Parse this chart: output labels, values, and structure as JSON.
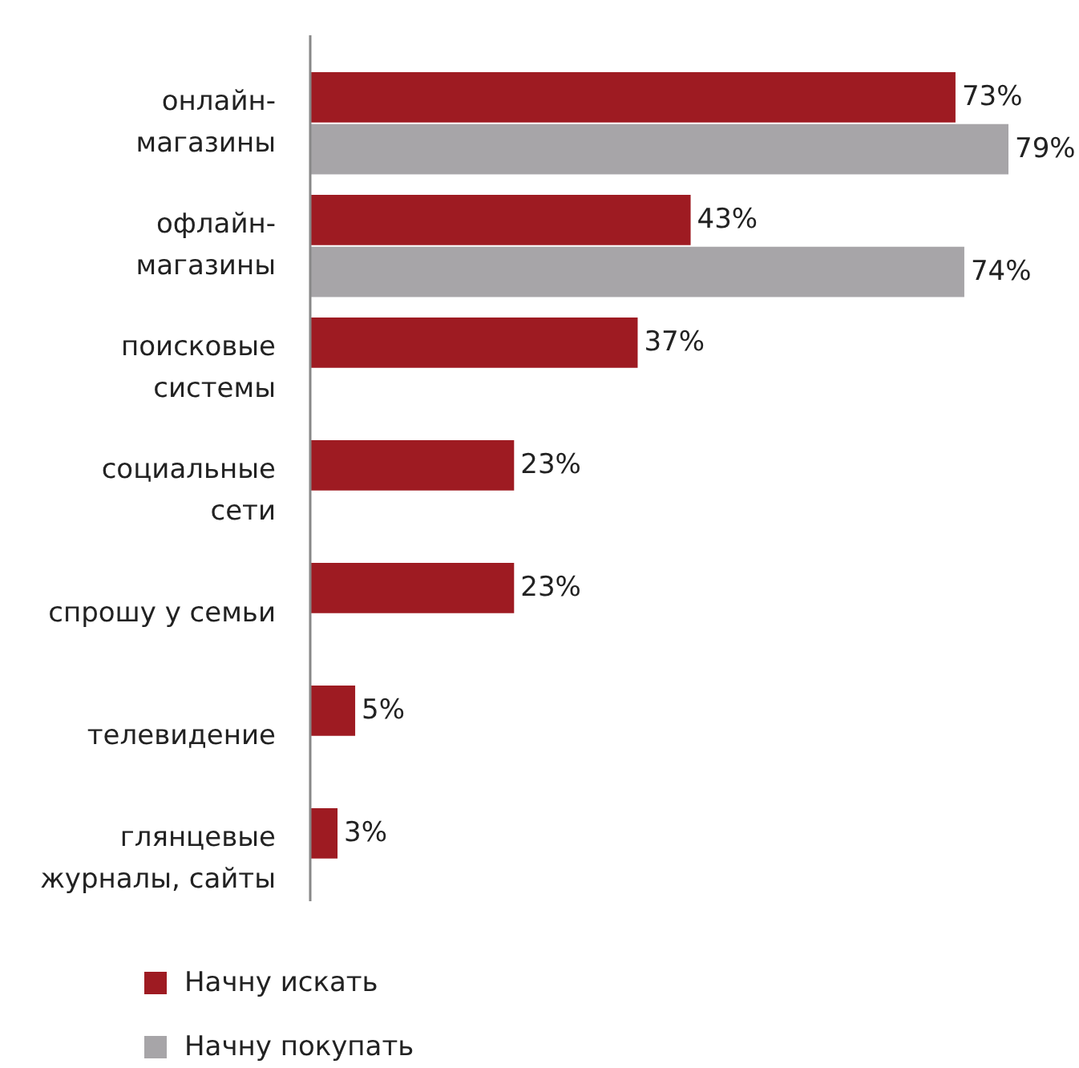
{
  "chart_data": {
    "type": "bar",
    "orientation": "horizontal",
    "categories": [
      "онлайн-магазины",
      "офлайн-магазины",
      "поисковые системы",
      "социальные сети",
      "спрошу у семьи",
      "телевидение",
      "глянцевые журналы, сайты"
    ],
    "series": [
      {
        "name": "Начну искать",
        "color": "#9e1b22",
        "values": [
          73,
          43,
          37,
          23,
          23,
          5,
          3
        ],
        "value_labels": [
          "73%",
          "43%",
          "37%",
          "23%",
          "23%",
          "5%",
          "3%"
        ]
      },
      {
        "name": "Начну покупать",
        "color": "#a7a5a8",
        "values": [
          79,
          74,
          null,
          null,
          null,
          null,
          null
        ],
        "value_labels": [
          "79%",
          "74%",
          null,
          null,
          null,
          null,
          null
        ]
      }
    ],
    "legend": "bottom"
  }
}
